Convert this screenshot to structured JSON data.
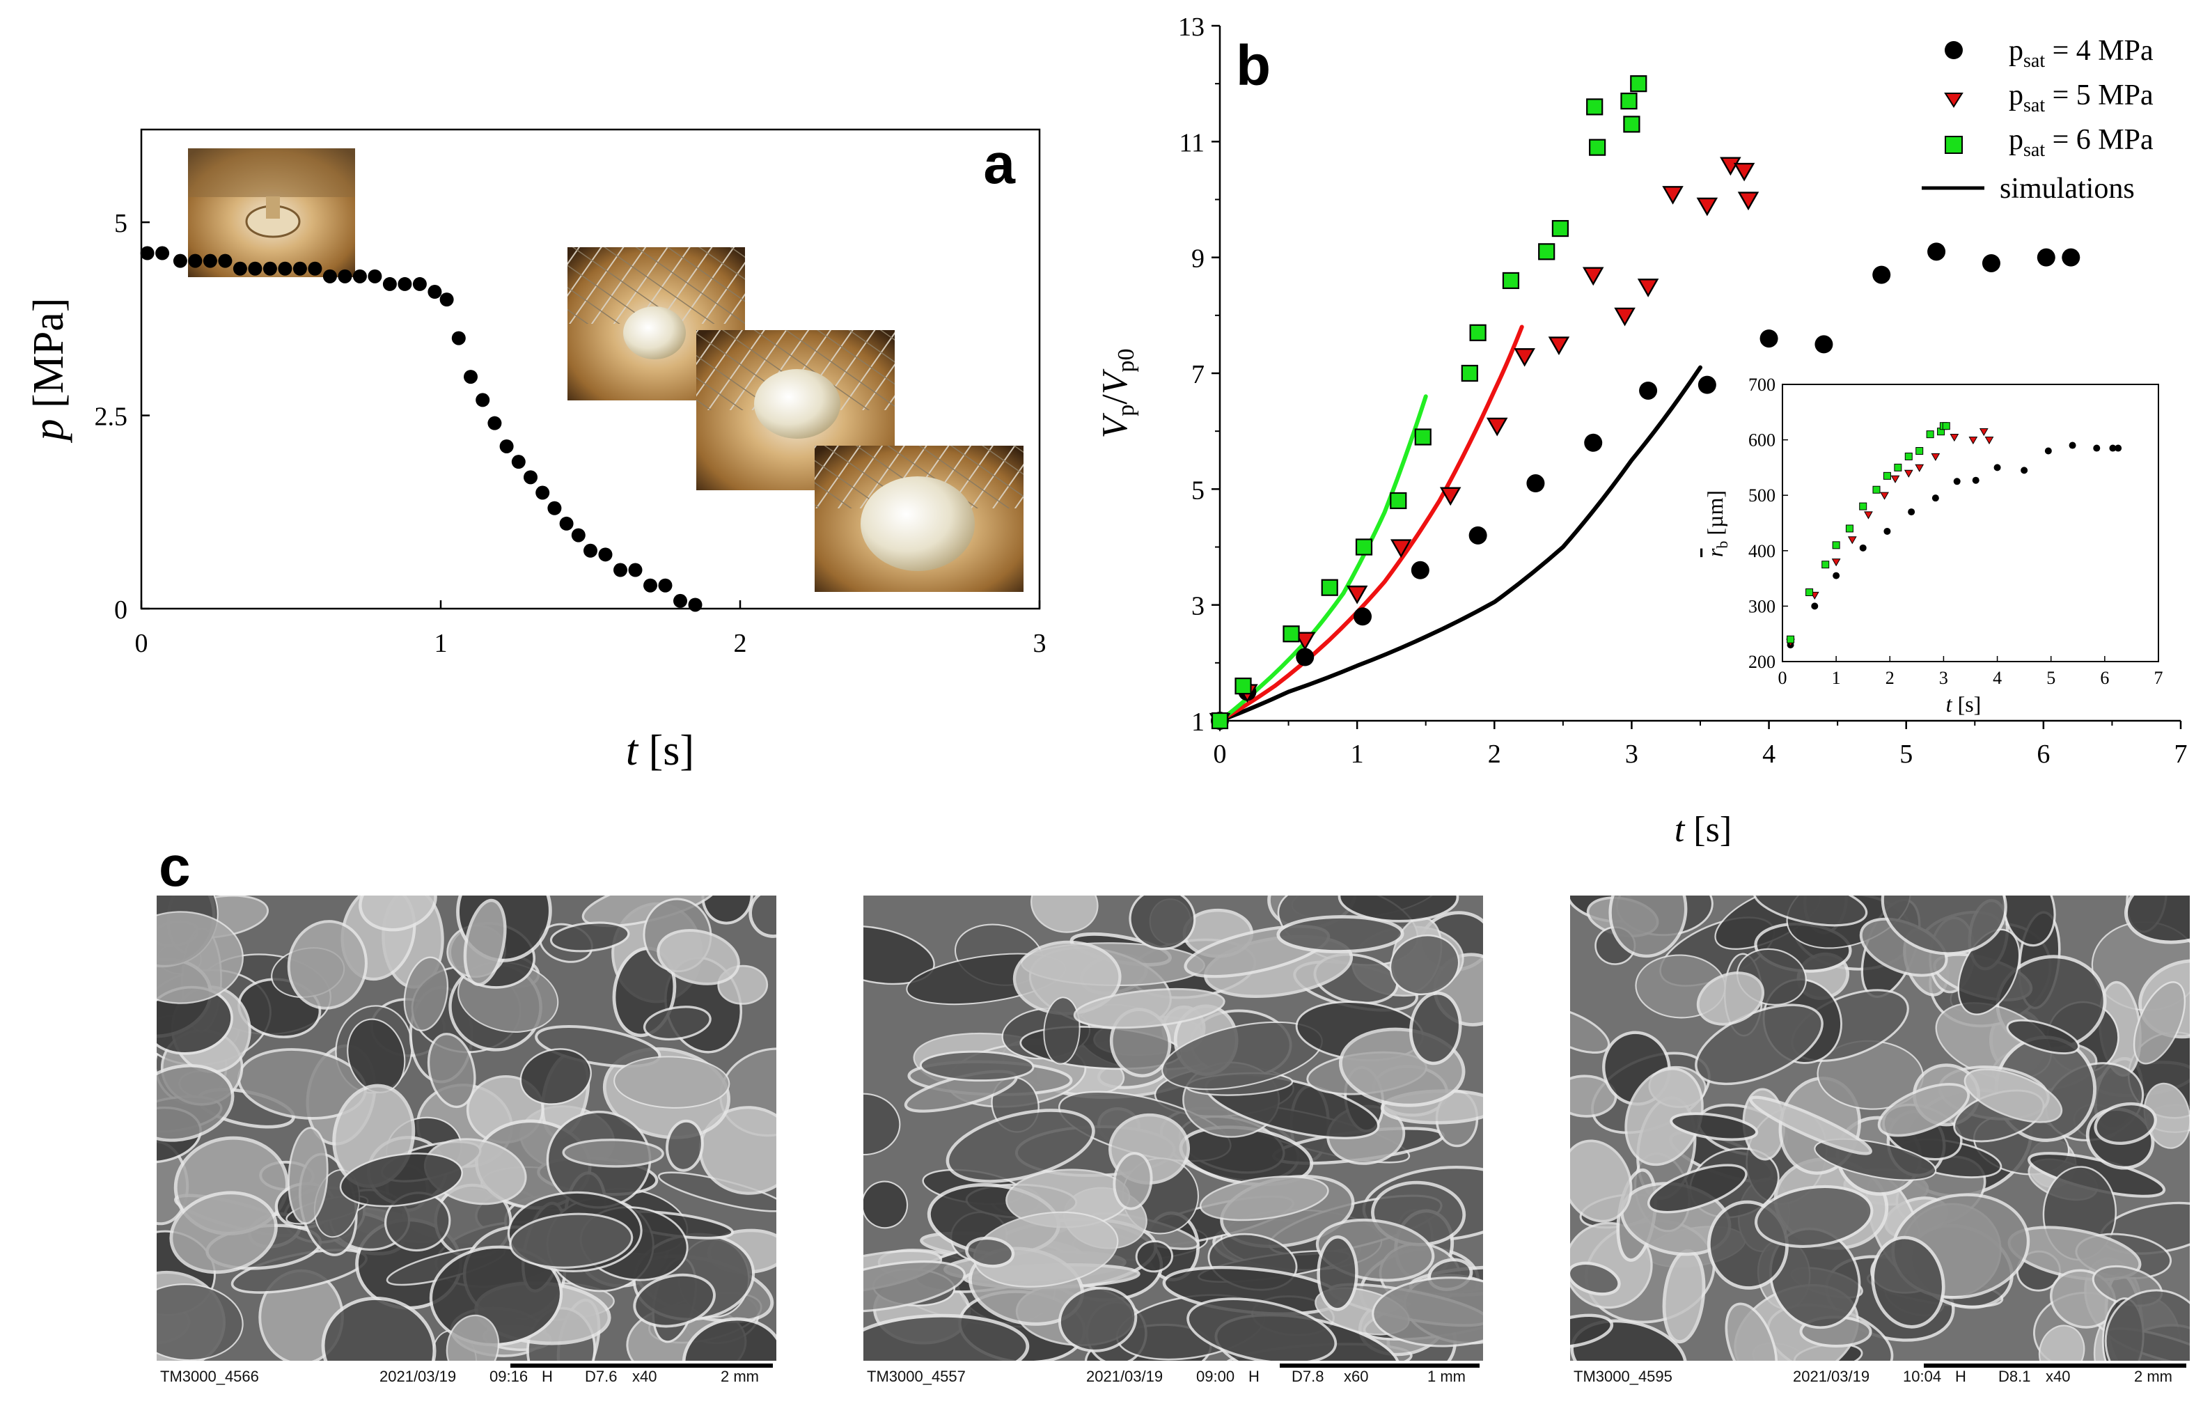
{
  "colors": {
    "black_series": "#000000",
    "red_series": "#e01010",
    "green_series": "#19e019",
    "sim_black": "#000000",
    "sim_red": "#ee1111",
    "sim_green": "#22ee22",
    "photo_gold": "#c8a060",
    "sem_gray": "#6e6e6e"
  },
  "panel_a": {
    "label": "a",
    "photos": [
      {
        "name": "photo-sample-initial",
        "icon": "sample-photo-icon"
      },
      {
        "name": "photo-sample-expand-1",
        "icon": "sample-photo-icon"
      },
      {
        "name": "photo-sample-expand-2",
        "icon": "sample-photo-icon"
      },
      {
        "name": "photo-sample-expand-3",
        "icon": "sample-photo-icon"
      }
    ]
  },
  "panel_b": {
    "label": "b",
    "legend": [
      {
        "label": "p",
        "subscript": "sat",
        "value": " = 4 MPa"
      },
      {
        "label": "p",
        "subscript": "sat",
        "value": " = 5 MPa"
      },
      {
        "label": "p",
        "subscript": "sat",
        "value": " = 6 MPa"
      },
      {
        "label": "simulations",
        "subscript": "",
        "value": ""
      }
    ]
  },
  "panel_c": {
    "label": "c",
    "images": [
      {
        "id": "TM3000_4566",
        "date": "2021/03/19",
        "time": "09:16",
        "mode": "H",
        "wd": "D7.6",
        "mag": "x40",
        "scale": "2 mm"
      },
      {
        "id": "TM3000_4557",
        "date": "2021/03/19",
        "time": "09:00",
        "mode": "H",
        "wd": "D7.8",
        "mag": "x60",
        "scale": "1 mm"
      },
      {
        "id": "TM3000_4595",
        "date": "2021/03/19",
        "time": "10:04",
        "mode": "H",
        "wd": "D8.1",
        "mag": "x40",
        "scale": "2 mm"
      }
    ]
  },
  "chart_data": [
    {
      "type": "scatter",
      "id": "a",
      "title": "",
      "xlabel": "t [s]",
      "ylabel": "p [MPa]",
      "xlim": [
        0,
        3
      ],
      "ylim": [
        0,
        6.2
      ],
      "xticks": [
        "0",
        "1",
        "2",
        "3"
      ],
      "yticks": [
        "0",
        "2.5",
        "5"
      ],
      "series": [
        {
          "name": "pressure",
          "x": [
            0.02,
            0.07,
            0.13,
            0.18,
            0.23,
            0.28,
            0.33,
            0.38,
            0.43,
            0.48,
            0.53,
            0.58,
            0.63,
            0.68,
            0.73,
            0.78,
            0.83,
            0.88,
            0.93,
            0.98,
            1.02,
            1.06,
            1.1,
            1.14,
            1.18,
            1.22,
            1.26,
            1.3,
            1.34,
            1.38,
            1.42,
            1.46,
            1.5,
            1.55,
            1.6,
            1.65,
            1.7,
            1.75,
            1.8,
            1.85
          ],
          "y": [
            4.6,
            4.6,
            4.5,
            4.5,
            4.5,
            4.5,
            4.4,
            4.4,
            4.4,
            4.4,
            4.4,
            4.4,
            4.3,
            4.3,
            4.3,
            4.3,
            4.2,
            4.2,
            4.2,
            4.1,
            4.0,
            3.5,
            3.0,
            2.7,
            2.4,
            2.1,
            1.9,
            1.7,
            1.5,
            1.3,
            1.1,
            0.95,
            0.75,
            0.7,
            0.5,
            0.5,
            0.3,
            0.3,
            0.1,
            0.05
          ]
        }
      ]
    },
    {
      "type": "scatter",
      "id": "b",
      "title": "",
      "xlabel": "t [s]",
      "ylabel": "Vp/Vp0",
      "xlim": [
        0,
        7
      ],
      "ylim": [
        1,
        13
      ],
      "xticks": [
        "0",
        "1",
        "2",
        "3",
        "4",
        "5",
        "6",
        "7"
      ],
      "yticks": [
        "1",
        "3",
        "5",
        "7",
        "9",
        "11",
        "13"
      ],
      "series": [
        {
          "name": "p_sat = 4 MPa",
          "marker": "circle",
          "x": [
            0.0,
            0.2,
            0.62,
            1.04,
            1.46,
            1.88,
            2.3,
            2.72,
            3.12,
            3.55,
            4.0,
            4.4,
            4.82,
            5.22,
            5.62,
            6.02,
            6.2
          ],
          "y": [
            1.0,
            1.5,
            2.1,
            2.8,
            3.6,
            4.2,
            5.1,
            5.8,
            6.7,
            6.8,
            7.6,
            7.5,
            8.7,
            9.1,
            8.9,
            9.0,
            9.0
          ]
        },
        {
          "name": "p_sat = 5 MPa",
          "marker": "triangle-down",
          "x": [
            0.0,
            0.2,
            0.62,
            1.0,
            1.32,
            1.68,
            2.02,
            2.22,
            2.47,
            2.72,
            2.95,
            3.12,
            3.3,
            3.55,
            3.72,
            3.82,
            3.85
          ],
          "y": [
            1.0,
            1.5,
            2.4,
            3.2,
            4.0,
            4.9,
            6.1,
            7.3,
            7.5,
            8.7,
            8.0,
            8.5,
            10.1,
            9.9,
            10.6,
            10.5,
            10.0
          ]
        },
        {
          "name": "p_sat = 6 MPa",
          "marker": "square",
          "x": [
            0.0,
            0.17,
            0.52,
            0.8,
            1.05,
            1.3,
            1.48,
            1.82,
            1.88,
            2.12,
            2.38,
            2.48,
            2.73,
            2.75,
            2.98,
            3.0,
            3.05
          ],
          "y": [
            1.0,
            1.6,
            2.5,
            3.3,
            4.0,
            4.8,
            5.9,
            7.0,
            7.7,
            8.6,
            9.1,
            9.5,
            11.6,
            10.9,
            11.7,
            11.3,
            12.0
          ]
        },
        {
          "name": "simulation 4 MPa",
          "line": true,
          "x": [
            0,
            0.5,
            1.0,
            1.5,
            2.0,
            2.5,
            3.0,
            3.5
          ],
          "y": [
            1.0,
            1.5,
            1.95,
            2.45,
            3.05,
            4.0,
            5.5,
            7.1
          ]
        },
        {
          "name": "simulation 5 MPa",
          "line": true,
          "x": [
            0,
            0.4,
            0.8,
            1.2,
            1.6,
            2.0,
            2.2
          ],
          "y": [
            1.0,
            1.6,
            2.4,
            3.4,
            4.8,
            6.7,
            7.8
          ]
        },
        {
          "name": "simulation 6 MPa",
          "line": true,
          "x": [
            0,
            0.3,
            0.6,
            0.9,
            1.2,
            1.5
          ],
          "y": [
            1.0,
            1.6,
            2.3,
            3.2,
            4.6,
            6.6
          ]
        }
      ]
    },
    {
      "type": "scatter",
      "id": "b-inset",
      "title": "",
      "xlabel": "t [s]",
      "ylabel": "r_b [µm]",
      "xlim": [
        0,
        7
      ],
      "ylim": [
        200,
        700
      ],
      "xticks": [
        "0",
        "1",
        "2",
        "3",
        "4",
        "5",
        "6",
        "7"
      ],
      "yticks": [
        "200",
        "300",
        "400",
        "500",
        "600",
        "700"
      ],
      "series": [
        {
          "name": "p_sat = 4 MPa",
          "marker": "circle",
          "x": [
            0.15,
            0.6,
            1.0,
            1.5,
            1.95,
            2.4,
            2.85,
            3.25,
            3.6,
            4.0,
            4.5,
            4.95,
            5.4,
            5.85,
            6.15,
            6.25
          ],
          "y": [
            230,
            300,
            355,
            405,
            435,
            470,
            495,
            525,
            527,
            550,
            545,
            580,
            590,
            585,
            585,
            585
          ]
        },
        {
          "name": "p_sat = 5 MPa",
          "marker": "triangle-down",
          "x": [
            0.15,
            0.6,
            1.0,
            1.3,
            1.6,
            1.9,
            2.1,
            2.35,
            2.55,
            2.85,
            3.2,
            3.55,
            3.75,
            3.85
          ],
          "y": [
            235,
            320,
            380,
            420,
            465,
            500,
            530,
            540,
            550,
            570,
            605,
            600,
            615,
            600
          ]
        },
        {
          "name": "p_sat = 6 MPa",
          "marker": "square",
          "x": [
            0.15,
            0.5,
            0.8,
            1.0,
            1.25,
            1.5,
            1.75,
            1.95,
            2.15,
            2.35,
            2.55,
            2.75,
            2.95,
            3.0,
            3.05
          ],
          "y": [
            240,
            325,
            375,
            410,
            440,
            480,
            510,
            535,
            550,
            570,
            580,
            610,
            615,
            625,
            625
          ]
        }
      ]
    }
  ]
}
